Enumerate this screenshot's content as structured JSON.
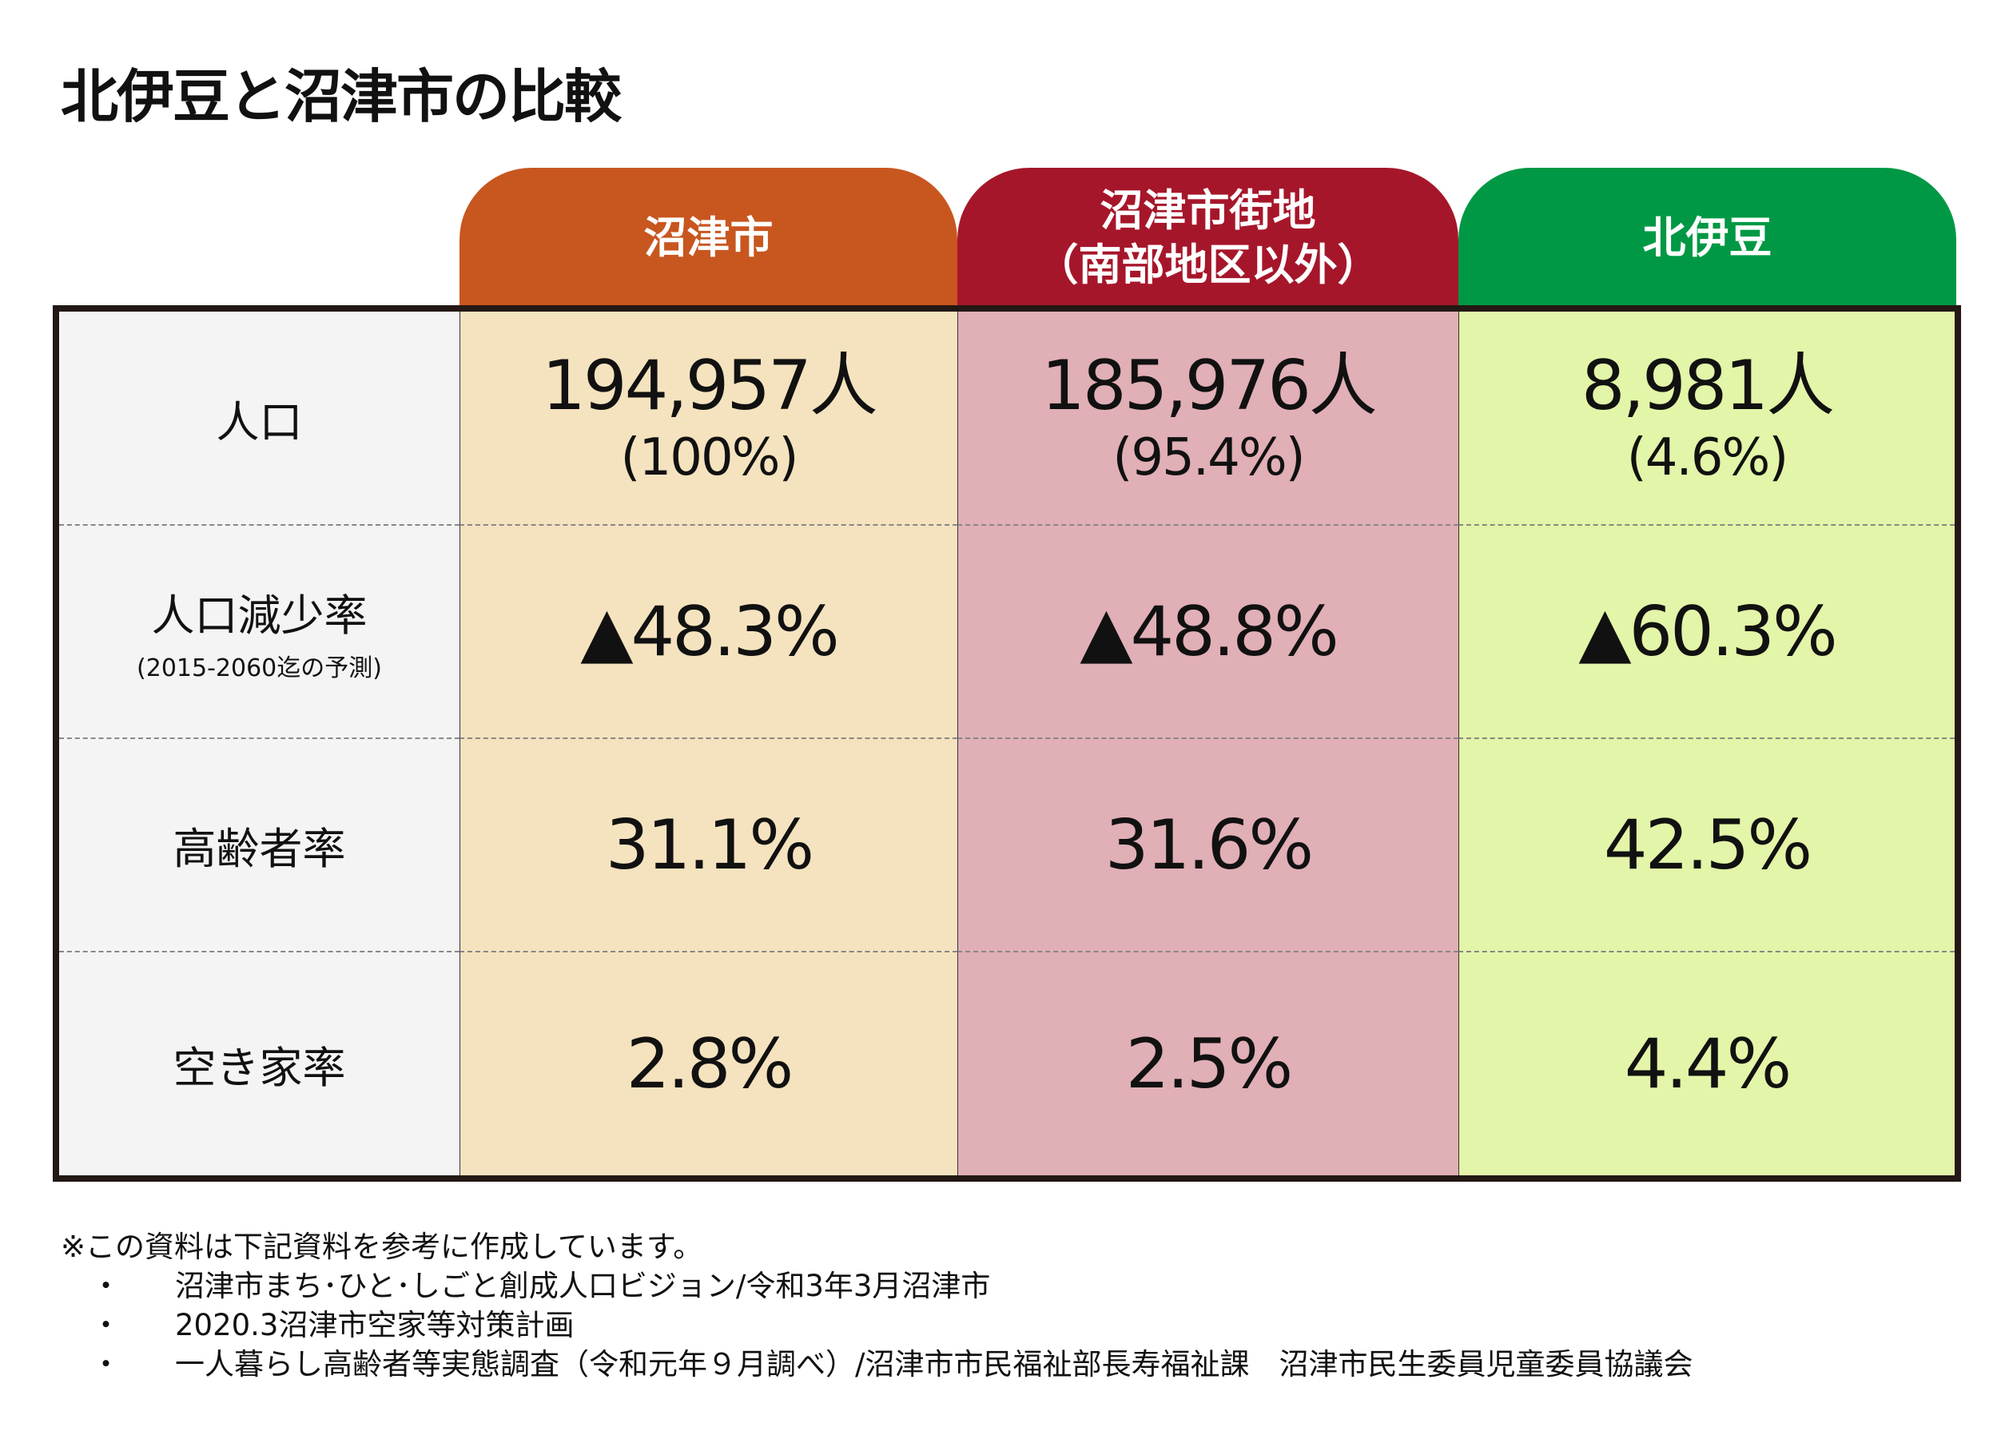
{
  "title": "北伊豆と沼津市の比較",
  "columns": [
    {
      "label": "沼津市",
      "label2": "",
      "color": "#C8561F"
    },
    {
      "label": "沼津市街地",
      "label2": "（南部地区以外）",
      "color": "#A6162A"
    },
    {
      "label": "北伊豆",
      "label2": "",
      "color": "#009844"
    }
  ],
  "rows": [
    {
      "label": "人口",
      "sublabel": "",
      "values": [
        "194,957人",
        "185,976人",
        "8,981人"
      ],
      "subvalues": [
        "(100%)",
        "(95.4%)",
        "(4.6%)"
      ]
    },
    {
      "label": "人口減少率",
      "sublabel": "(2015-2060迄の予測)",
      "values": [
        "▲48.3%",
        "▲48.8%",
        "▲60.3%"
      ]
    },
    {
      "label": "高齢者率",
      "sublabel": "",
      "values": [
        "31.1%",
        "31.6%",
        "42.5%"
      ]
    },
    {
      "label": "空き家率",
      "sublabel": "",
      "values": [
        "2.8%",
        "2.5%",
        "4.4%"
      ]
    }
  ],
  "notes": {
    "heading": "※この資料は下記資料を参考に作成しています。",
    "bullet": "・",
    "items": [
      "沼津市まち･ひと･しごと創成人口ビジョン/令和3年3月沼津市",
      "2020.3沼津市空家等対策計画",
      "一人暮らし高齢者等実態調査（令和元年９月調べ）/沼津市市民福祉部長寿福祉課　沼津市民生委員児童委員協議会"
    ]
  }
}
